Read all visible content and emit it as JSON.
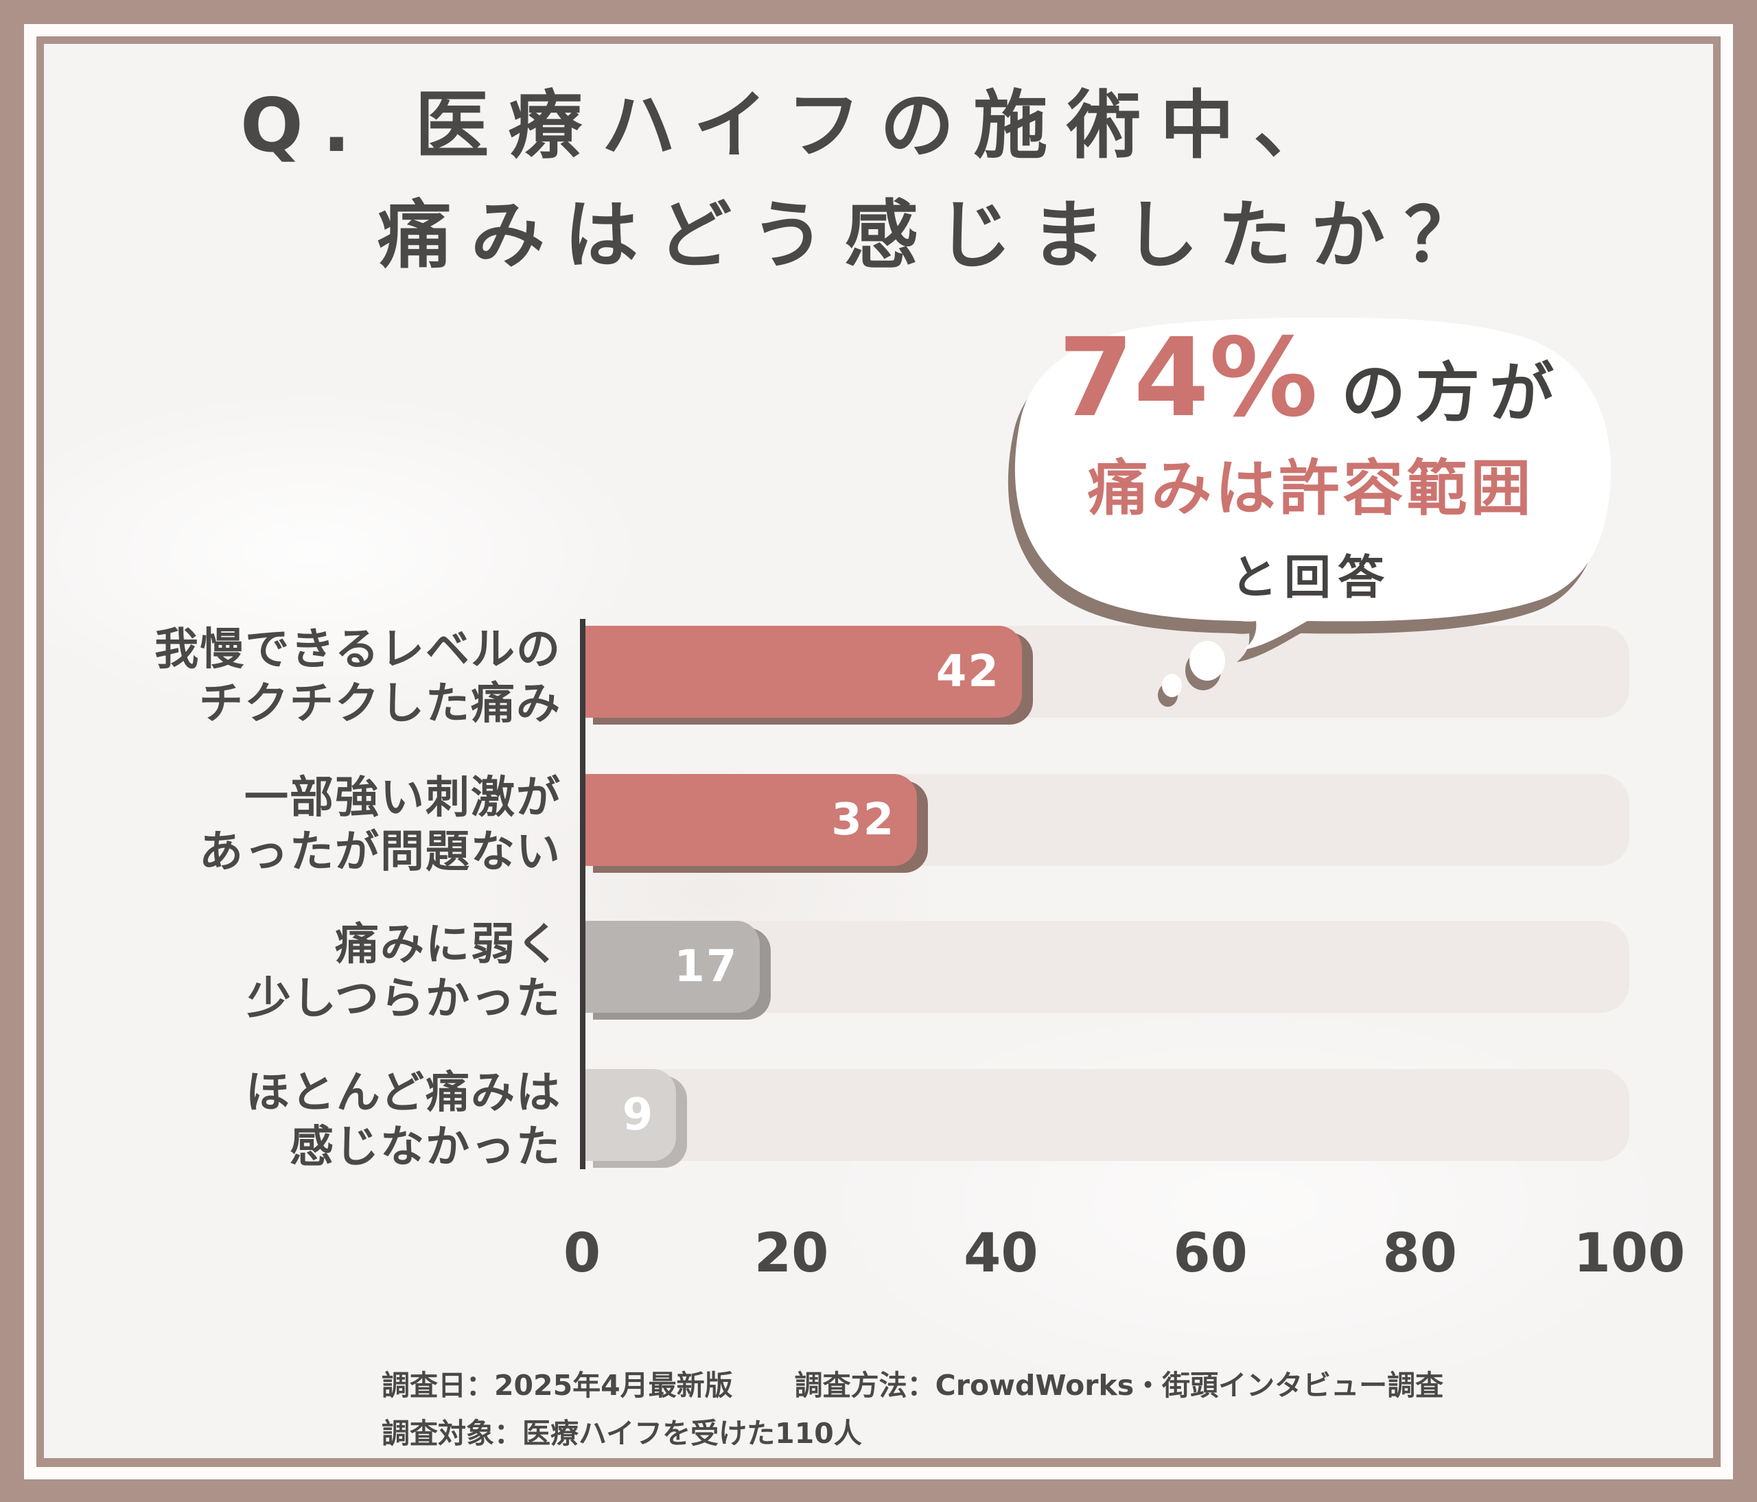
{
  "title": {
    "line1": "Q. 医療ハイフの施術中、",
    "line2": "痛みはどう感じましたか？"
  },
  "bubble": {
    "percent": "74%",
    "percent_suffix": "の方が",
    "highlight_line": "痛みは許容範囲",
    "answer_line": "と回答"
  },
  "chart_data": {
    "type": "bar",
    "orientation": "horizontal",
    "categories": [
      "我慢できるレベルの\nチクチクした痛み",
      "一部強い刺激が\nあったが問題ない",
      "痛みに弱く\n少しつらかった",
      "ほとんど痛みは\n感じなかった"
    ],
    "values": [
      42,
      32,
      17,
      9
    ],
    "xlim": [
      0,
      100
    ],
    "xticks": [
      "0",
      "20",
      "40",
      "60",
      "80",
      "100"
    ],
    "grid": false,
    "legend": false,
    "bar_colors": [
      "#CE7A75",
      "#CE7A75",
      "#B8B4B2",
      "#D5D2D0"
    ],
    "track_color": "#EFEAE7",
    "axis_color": "#3C3A3A",
    "rows": [
      {
        "label_line1": "我慢できるレベルの",
        "label_line2": "チクチクした痛み",
        "value": 42,
        "color": "#CE7A75",
        "shadow_color": "#8B6E66"
      },
      {
        "label_line1": "一部強い刺激が",
        "label_line2": "あったが問題ない",
        "value": 32,
        "color": "#CE7A75",
        "shadow_color": "#8B6E66"
      },
      {
        "label_line1": "痛みに弱く",
        "label_line2": "少しつらかった",
        "value": 17,
        "color": "#B8B4B2",
        "shadow_color": "#9B9795"
      },
      {
        "label_line1": "ほとんど痛みは",
        "label_line2": "感じなかった",
        "value": 9,
        "color": "#D5D2D0",
        "shadow_color": "#B9B5B3"
      }
    ]
  },
  "footer": {
    "survey_date": "調査日：2025年4月最新版",
    "survey_method": "調査方法：CrowdWorks・街頭インタビュー調査",
    "survey_target": "調査対象：医療ハイフを受けた110人"
  },
  "colors": {
    "frame": "#AC9289",
    "frame_inner_band": "#FDFCFB",
    "content_background": "#F6F4F3",
    "accent_red": "#CE7A75",
    "bubble_text_red": "#CC7470",
    "text_dark": "#4B4848",
    "bubble_shadow_brown": "#8C7970",
    "value_text": "#FFFFFF"
  }
}
